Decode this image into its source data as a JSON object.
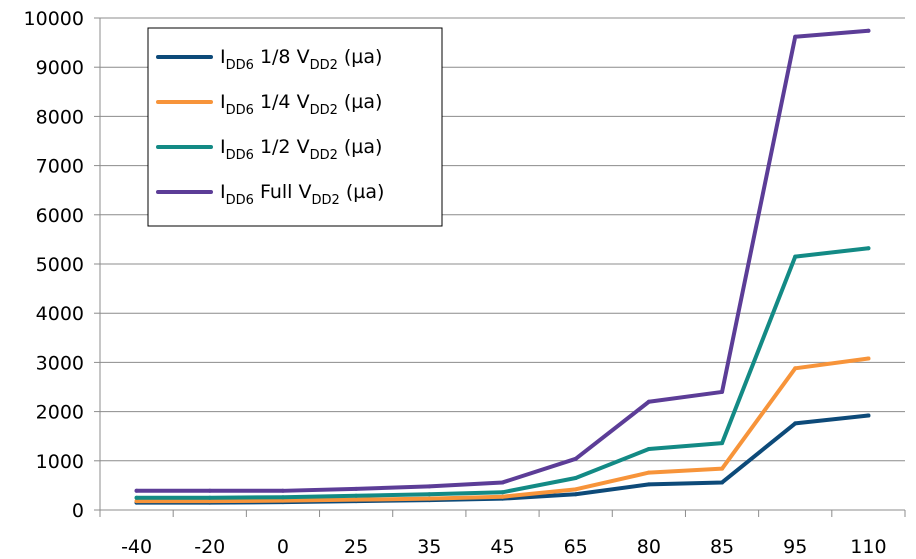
{
  "chart_data": {
    "type": "line",
    "title": "",
    "xlabel": "",
    "ylabel": "",
    "categories": [
      "-40",
      "-20",
      "0",
      "25",
      "35",
      "45",
      "65",
      "80",
      "85",
      "95",
      "110"
    ],
    "ylim": [
      0,
      10000
    ],
    "yticks": [
      0,
      1000,
      2000,
      3000,
      4000,
      5000,
      6000,
      7000,
      8000,
      9000,
      10000
    ],
    "grid": true,
    "legend_position": "top-left",
    "series": [
      {
        "name": "I_DD6 1/8 V_DD2 (µa)",
        "label_parts": {
          "main": "I",
          "sub1": "DD6",
          "mid": " 1/8 V",
          "sub2": "DD2",
          "end": " (µa)"
        },
        "color": "#0d4a79",
        "values": [
          150,
          150,
          160,
          180,
          200,
          230,
          320,
          520,
          560,
          1760,
          1920
        ]
      },
      {
        "name": "I_DD6 1/4 V_DD2 (µa)",
        "label_parts": {
          "main": "I",
          "sub1": "DD6",
          "mid": " 1/4 V",
          "sub2": "DD2",
          "end": " (µa)"
        },
        "color": "#f7943a",
        "values": [
          180,
          180,
          190,
          210,
          230,
          270,
          420,
          760,
          840,
          2880,
          3080
        ]
      },
      {
        "name": "I_DD6 1/2 V_DD2 (µa)",
        "label_parts": {
          "main": "I",
          "sub1": "DD6",
          "mid": " 1/2 V",
          "sub2": "DD2",
          "end": " (µa)"
        },
        "color": "#138a85",
        "values": [
          250,
          250,
          260,
          290,
          320,
          360,
          650,
          1240,
          1360,
          5150,
          5320
        ]
      },
      {
        "name": "I_DD6 Full V_DD2 (µa)",
        "label_parts": {
          "main": "I",
          "sub1": "DD6",
          "mid": " Full V",
          "sub2": "DD2",
          "end": " (µa)"
        },
        "color": "#5c3d97",
        "values": [
          390,
          390,
          390,
          430,
          480,
          560,
          1040,
          2200,
          2400,
          9620,
          9740
        ]
      }
    ]
  }
}
